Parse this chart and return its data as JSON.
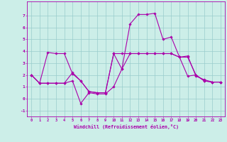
{
  "xlabel": "Windchill (Refroidissement éolien,°C)",
  "background_color": "#cceee8",
  "line_color": "#aa00aa",
  "grid_color": "#99cccc",
  "ylim": [
    -1.5,
    8.2
  ],
  "xlim": [
    -0.5,
    23.5
  ],
  "xticks": [
    0,
    1,
    2,
    3,
    4,
    5,
    6,
    7,
    8,
    9,
    10,
    11,
    12,
    13,
    14,
    15,
    16,
    17,
    18,
    19,
    20,
    21,
    22,
    23
  ],
  "yticks": [
    -1,
    0,
    1,
    2,
    3,
    4,
    5,
    6,
    7
  ],
  "line1_x": [
    0,
    1,
    2,
    3,
    4,
    5,
    6,
    7,
    8,
    9,
    10,
    11,
    12,
    13,
    14,
    15,
    16,
    17,
    18,
    19,
    20,
    21,
    22,
    23
  ],
  "line1_y": [
    2.0,
    1.3,
    1.3,
    1.3,
    1.3,
    1.5,
    -0.4,
    0.5,
    0.4,
    0.4,
    1.0,
    2.5,
    6.3,
    7.1,
    7.1,
    7.2,
    5.0,
    5.2,
    3.5,
    3.6,
    1.9,
    1.6,
    1.4,
    1.4
  ],
  "line2_x": [
    0,
    1,
    2,
    3,
    4,
    5,
    6,
    7,
    8,
    9,
    10,
    11,
    12,
    13,
    14,
    15,
    16,
    17,
    18,
    19,
    20,
    21,
    22,
    23
  ],
  "line2_y": [
    2.0,
    1.3,
    3.9,
    3.8,
    3.8,
    2.1,
    1.5,
    0.6,
    0.5,
    0.5,
    3.8,
    3.8,
    3.8,
    3.8,
    3.8,
    3.8,
    3.8,
    3.8,
    3.5,
    3.5,
    2.0,
    1.5,
    1.4,
    1.4
  ],
  "line3_x": [
    0,
    1,
    2,
    3,
    4,
    5,
    6,
    7,
    8,
    9,
    10,
    11,
    12,
    13,
    14,
    15,
    16,
    17,
    18,
    19,
    20,
    21,
    22,
    23
  ],
  "line3_y": [
    2.0,
    1.3,
    1.3,
    1.3,
    1.3,
    2.2,
    1.5,
    0.6,
    0.5,
    0.5,
    3.8,
    2.5,
    3.8,
    3.8,
    3.8,
    3.8,
    3.8,
    3.8,
    3.5,
    1.9,
    2.0,
    1.5,
    1.4,
    1.4
  ],
  "markersize": 1.8,
  "linewidth": 0.8
}
